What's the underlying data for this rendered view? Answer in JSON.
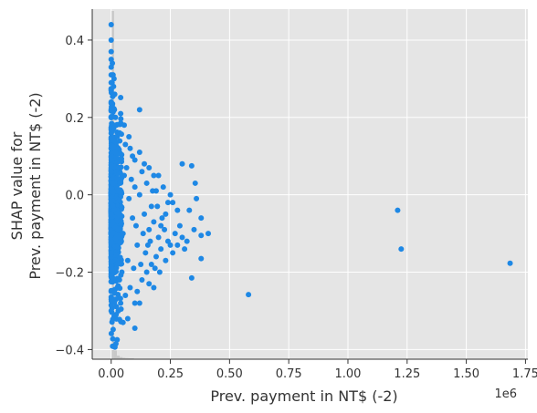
{
  "chart_data": {
    "type": "scatter",
    "title": "",
    "xlabel": "Prev. payment in NT$ (-2)",
    "ylabel_lines": [
      "SHAP value for",
      "Prev. payment in NT$ (-2)"
    ],
    "x_offset_label": "1e6",
    "xlim": [
      -80000,
      1760000
    ],
    "ylim": [
      -0.425,
      0.48
    ],
    "x_ticks": [
      0,
      250000,
      500000,
      750000,
      1000000,
      1250000,
      1500000,
      1750000
    ],
    "x_tick_labels": [
      "0.00",
      "0.25",
      "0.50",
      "0.75",
      "1.00",
      "1.25",
      "1.50",
      "1.75"
    ],
    "y_ticks": [
      -0.4,
      -0.2,
      0.0,
      0.2,
      0.4
    ],
    "y_tick_labels": [
      "−0.4",
      "−0.2",
      "0.0",
      "0.2",
      "0.4"
    ],
    "grid": true,
    "point_color": "#1e88e5",
    "background_color": "#e5e5e5",
    "histogram_color": "#c8c8c8",
    "histogram": {
      "bin_edges": [
        0,
        12000,
        24000,
        36000,
        48000,
        60000,
        72000,
        84000,
        96000
      ],
      "relative_heights": [
        1.0,
        0.025,
        0.01,
        0.006,
        0.004,
        0.003,
        0.002,
        0.002
      ]
    },
    "series": [
      {
        "points": [
          [
            0,
            0.44
          ],
          [
            0,
            0.4
          ],
          [
            0,
            0.37
          ],
          [
            0,
            0.35
          ],
          [
            0,
            0.33
          ],
          [
            0,
            0.31
          ],
          [
            0,
            0.29
          ],
          [
            0,
            0.27
          ],
          [
            0,
            0.24
          ],
          [
            0,
            0.2
          ],
          [
            0,
            0.1
          ],
          [
            0,
            -0.05
          ],
          [
            0,
            -0.15
          ],
          [
            0,
            -0.25
          ],
          [
            0,
            -0.3
          ],
          [
            5000,
            0.34
          ],
          [
            8000,
            0.31
          ],
          [
            10000,
            0.28
          ],
          [
            12000,
            0.3
          ],
          [
            15000,
            0.26
          ],
          [
            5000,
            0.22
          ],
          [
            18000,
            0.2
          ],
          [
            22000,
            0.18
          ],
          [
            25000,
            0.15
          ],
          [
            30000,
            0.12
          ],
          [
            35000,
            0.16
          ],
          [
            40000,
            0.21
          ],
          [
            55000,
            0.18
          ],
          [
            60000,
            0.13
          ],
          [
            75000,
            0.15
          ],
          [
            80000,
            0.12
          ],
          [
            90000,
            0.1
          ],
          [
            100000,
            0.09
          ],
          [
            120000,
            0.11
          ],
          [
            130000,
            0.06
          ],
          [
            140000,
            0.08
          ],
          [
            160000,
            0.07
          ],
          [
            180000,
            0.05
          ],
          [
            120000,
            0.22
          ],
          [
            200000,
            0.05
          ],
          [
            220000,
            0.02
          ],
          [
            240000,
            -0.02
          ],
          [
            250000,
            0.0
          ],
          [
            230000,
            -0.05
          ],
          [
            260000,
            -0.02
          ],
          [
            280000,
            -0.04
          ],
          [
            300000,
            0.08
          ],
          [
            340000,
            0.075
          ],
          [
            355000,
            0.03
          ],
          [
            360000,
            -0.01
          ],
          [
            380000,
            -0.06
          ],
          [
            350000,
            -0.09
          ],
          [
            320000,
            -0.12
          ],
          [
            380000,
            -0.105
          ],
          [
            410000,
            -0.1
          ],
          [
            300000,
            -0.11
          ],
          [
            280000,
            -0.13
          ],
          [
            260000,
            -0.15
          ],
          [
            240000,
            -0.12
          ],
          [
            210000,
            -0.14
          ],
          [
            190000,
            -0.16
          ],
          [
            170000,
            -0.18
          ],
          [
            150000,
            -0.2
          ],
          [
            130000,
            -0.22
          ],
          [
            110000,
            -0.25
          ],
          [
            80000,
            -0.24
          ],
          [
            60000,
            -0.26
          ],
          [
            40000,
            -0.28
          ],
          [
            20000,
            -0.27
          ],
          [
            30000,
            -0.3
          ],
          [
            50000,
            -0.33
          ],
          [
            70000,
            -0.32
          ],
          [
            100000,
            -0.28
          ],
          [
            120000,
            -0.28
          ],
          [
            100000,
            -0.345
          ],
          [
            20000,
            -0.385
          ],
          [
            180000,
            -0.24
          ],
          [
            160000,
            -0.23
          ],
          [
            340000,
            -0.215
          ],
          [
            380000,
            -0.165
          ],
          [
            580000,
            -0.258
          ],
          [
            1210000,
            -0.04
          ],
          [
            1225000,
            -0.14
          ],
          [
            1685000,
            -0.177
          ],
          [
            140000,
            -0.05
          ],
          [
            160000,
            -0.09
          ],
          [
            180000,
            -0.07
          ],
          [
            200000,
            -0.11
          ],
          [
            90000,
            -0.06
          ],
          [
            110000,
            -0.13
          ],
          [
            70000,
            -0.17
          ],
          [
            50000,
            -0.1
          ],
          [
            100000,
            0.02
          ],
          [
            120000,
            0.0
          ],
          [
            150000,
            0.03
          ],
          [
            170000,
            -0.03
          ],
          [
            190000,
            0.01
          ],
          [
            210000,
            -0.08
          ],
          [
            230000,
            -0.17
          ],
          [
            250000,
            -0.13
          ],
          [
            270000,
            -0.1
          ],
          [
            290000,
            -0.08
          ],
          [
            310000,
            -0.14
          ],
          [
            330000,
            -0.04
          ],
          [
            65000,
            0.07
          ],
          [
            85000,
            0.04
          ],
          [
            45000,
            -0.2
          ],
          [
            35000,
            -0.22
          ],
          [
            95000,
            -0.19
          ],
          [
            125000,
            -0.18
          ],
          [
            145000,
            -0.15
          ],
          [
            165000,
            -0.12
          ],
          [
            175000,
            0.01
          ],
          [
            195000,
            -0.03
          ],
          [
            215000,
            -0.06
          ],
          [
            55000,
            0.05
          ],
          [
            75000,
            -0.01
          ],
          [
            105000,
            -0.08
          ],
          [
            135000,
            -0.1
          ],
          [
            155000,
            -0.13
          ],
          [
            185000,
            -0.19
          ],
          [
            205000,
            -0.2
          ],
          [
            225000,
            -0.09
          ]
        ]
      }
    ]
  }
}
